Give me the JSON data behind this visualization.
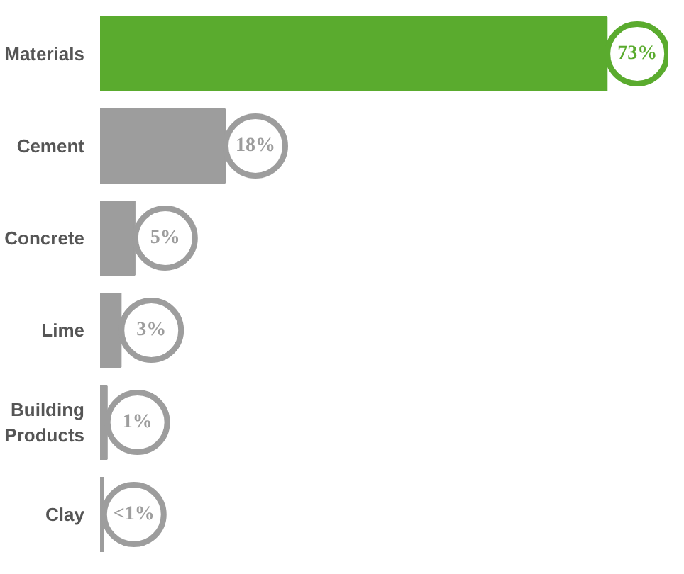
{
  "chart_data": {
    "type": "bar",
    "orientation": "horizontal",
    "categories": [
      "Materials",
      "Cement",
      "Concrete",
      "Lime",
      "Building Products",
      "Clay"
    ],
    "values": [
      73,
      18,
      5,
      3,
      1,
      0.5
    ],
    "colors": [
      "#5aab2e",
      "#9d9d9d",
      "#9d9d9d",
      "#9d9d9d",
      "#9d9d9d",
      "#9d9d9d"
    ],
    "value_labels": [
      "73%",
      "18%",
      "5%",
      "3%",
      "1%",
      "<1%"
    ]
  }
}
